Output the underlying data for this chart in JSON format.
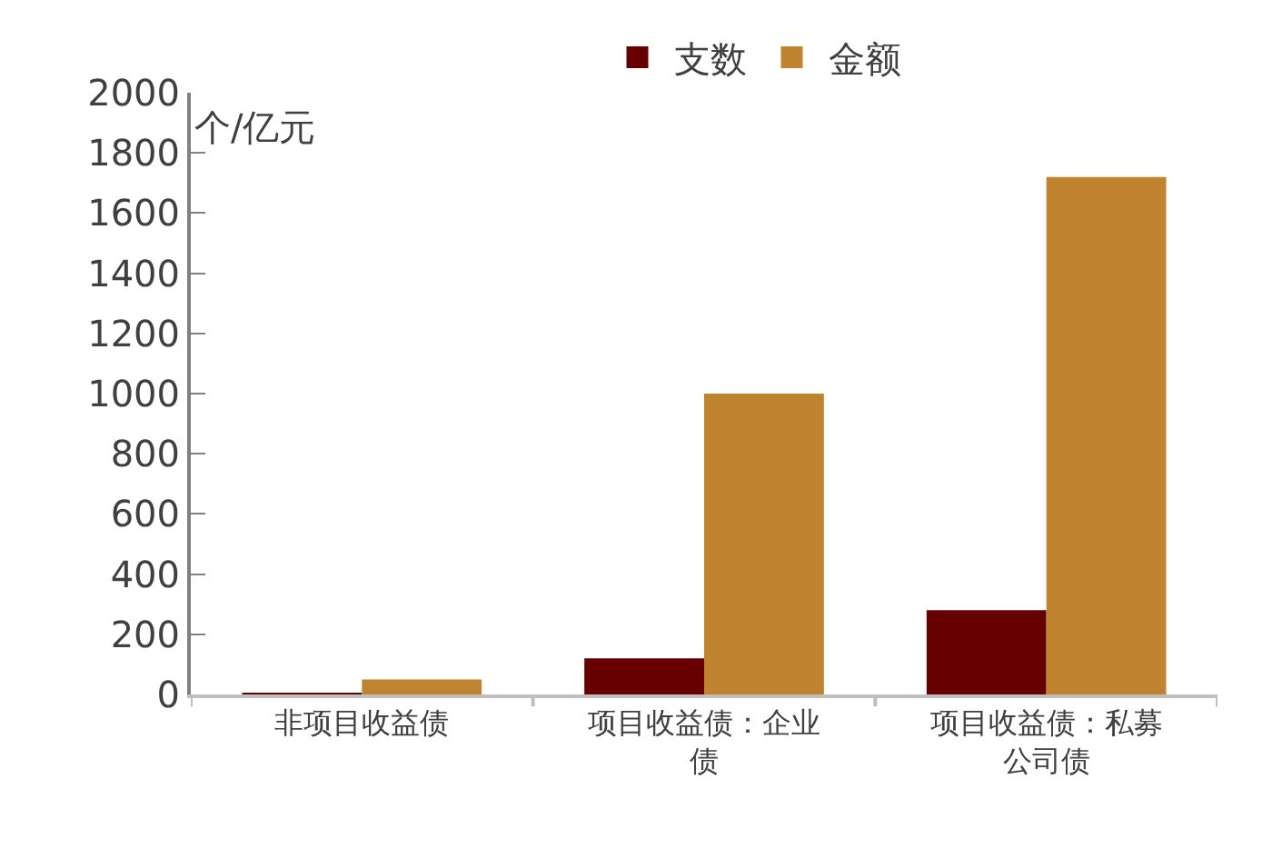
{
  "chart_data": {
    "type": "bar",
    "ylabel": "个/亿元",
    "categories": [
      "非项目收益债",
      "项目收益债：企业债",
      "项目收益债：私募公司债"
    ],
    "series": [
      {
        "name": "支数",
        "color": "#660000",
        "values": [
          3,
          120,
          280
        ]
      },
      {
        "name": "金额",
        "color": "#c08431",
        "values": [
          50,
          1000,
          1720
        ]
      }
    ],
    "ylim": [
      0,
      2000
    ],
    "yticks": [
      0,
      200,
      400,
      600,
      800,
      1000,
      1200,
      1400,
      1600,
      1800,
      2000
    ],
    "legend": "top"
  }
}
